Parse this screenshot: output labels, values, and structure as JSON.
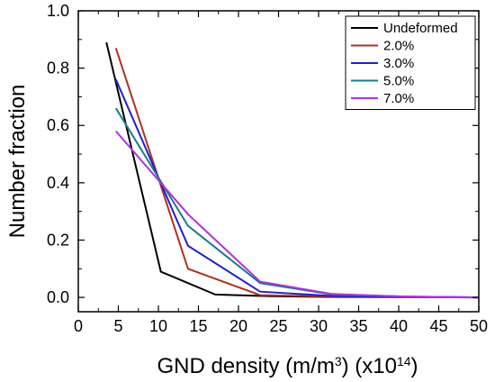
{
  "chart_data": {
    "type": "line",
    "title": "",
    "xlabel": "GND density (m/m³) (x10¹⁴)",
    "xlabel_parts": {
      "main": "GND density (m/m",
      "sup1": "3",
      "mid": ") (x10",
      "sup2": "14",
      "end": ")"
    },
    "ylabel": "Number fraction",
    "xlim": [
      0,
      50
    ],
    "ylim": [
      -0.05,
      1.0
    ],
    "xticks": [
      0,
      5,
      10,
      15,
      20,
      25,
      30,
      35,
      40,
      45,
      50
    ],
    "yticks": [
      0.0,
      0.2,
      0.4,
      0.6,
      0.8,
      1.0
    ],
    "xtick_labels": [
      "0",
      "5",
      "10",
      "15",
      "20",
      "25",
      "30",
      "35",
      "40",
      "45",
      "50"
    ],
    "ytick_labels": [
      "0.0",
      "0.2",
      "0.4",
      "0.6",
      "0.8",
      "1.0"
    ],
    "grid": false,
    "legend_position": "top-right",
    "series": [
      {
        "name": "Undeformed",
        "color": "#000000",
        "x": [
          3.5,
          10.3,
          17.1,
          24.0,
          30.8,
          37.6,
          44.4,
          50.0
        ],
        "y": [
          0.89,
          0.09,
          0.01,
          0.004,
          0.002,
          0.001,
          0.001,
          0.0
        ]
      },
      {
        "name": "2.0%",
        "color": "#b03020",
        "x": [
          4.7,
          13.7,
          22.7,
          31.7,
          40.7,
          50.0
        ],
        "y": [
          0.87,
          0.1,
          0.008,
          0.003,
          0.001,
          0.0
        ]
      },
      {
        "name": "3.0%",
        "color": "#2020cc",
        "x": [
          4.7,
          13.7,
          22.7,
          31.7,
          40.7,
          50.0
        ],
        "y": [
          0.76,
          0.18,
          0.02,
          0.005,
          0.002,
          0.0
        ]
      },
      {
        "name": "5.0%",
        "color": "#1a7a8a",
        "x": [
          4.7,
          13.7,
          22.7,
          31.7,
          40.7,
          50.0
        ],
        "y": [
          0.66,
          0.25,
          0.05,
          0.01,
          0.003,
          0.0
        ]
      },
      {
        "name": "7.0%",
        "color": "#b030e0",
        "x": [
          4.7,
          13.7,
          22.7,
          31.7,
          40.7,
          50.0
        ],
        "y": [
          0.58,
          0.29,
          0.055,
          0.012,
          0.003,
          0.0
        ]
      }
    ]
  }
}
